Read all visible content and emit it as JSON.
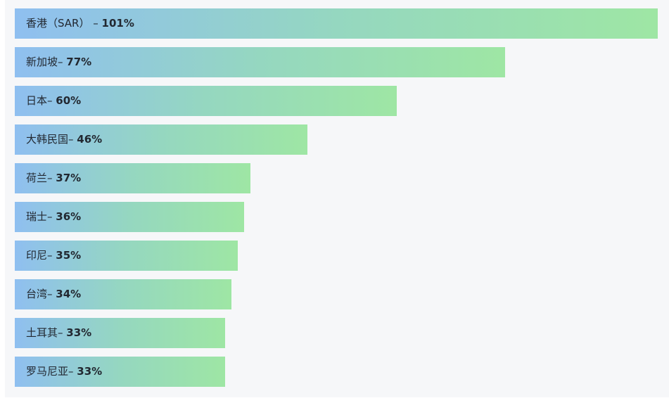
{
  "chart_data": {
    "type": "bar",
    "orientation": "horizontal",
    "categories": [
      "香港（SAR）",
      "新加坡",
      "日本",
      "大韩民国",
      "荷兰",
      "瑞士",
      "印尼",
      "台湾",
      "土耳其",
      "罗马尼亚"
    ],
    "separators": [
      " – ",
      "– ",
      "– ",
      "– ",
      "– ",
      "– ",
      "– ",
      "– ",
      "– ",
      "– "
    ],
    "values": [
      101,
      77,
      60,
      46,
      37,
      36,
      35,
      34,
      33,
      33
    ],
    "value_labels": [
      "101%",
      "77%",
      "60%",
      "46%",
      "37%",
      "36%",
      "35%",
      "34%",
      "33%",
      "33%"
    ],
    "unit": "%",
    "xlim": [
      0,
      101
    ],
    "grid": false,
    "gradient": [
      "#8fbff0",
      "#9ee6a4"
    ]
  }
}
